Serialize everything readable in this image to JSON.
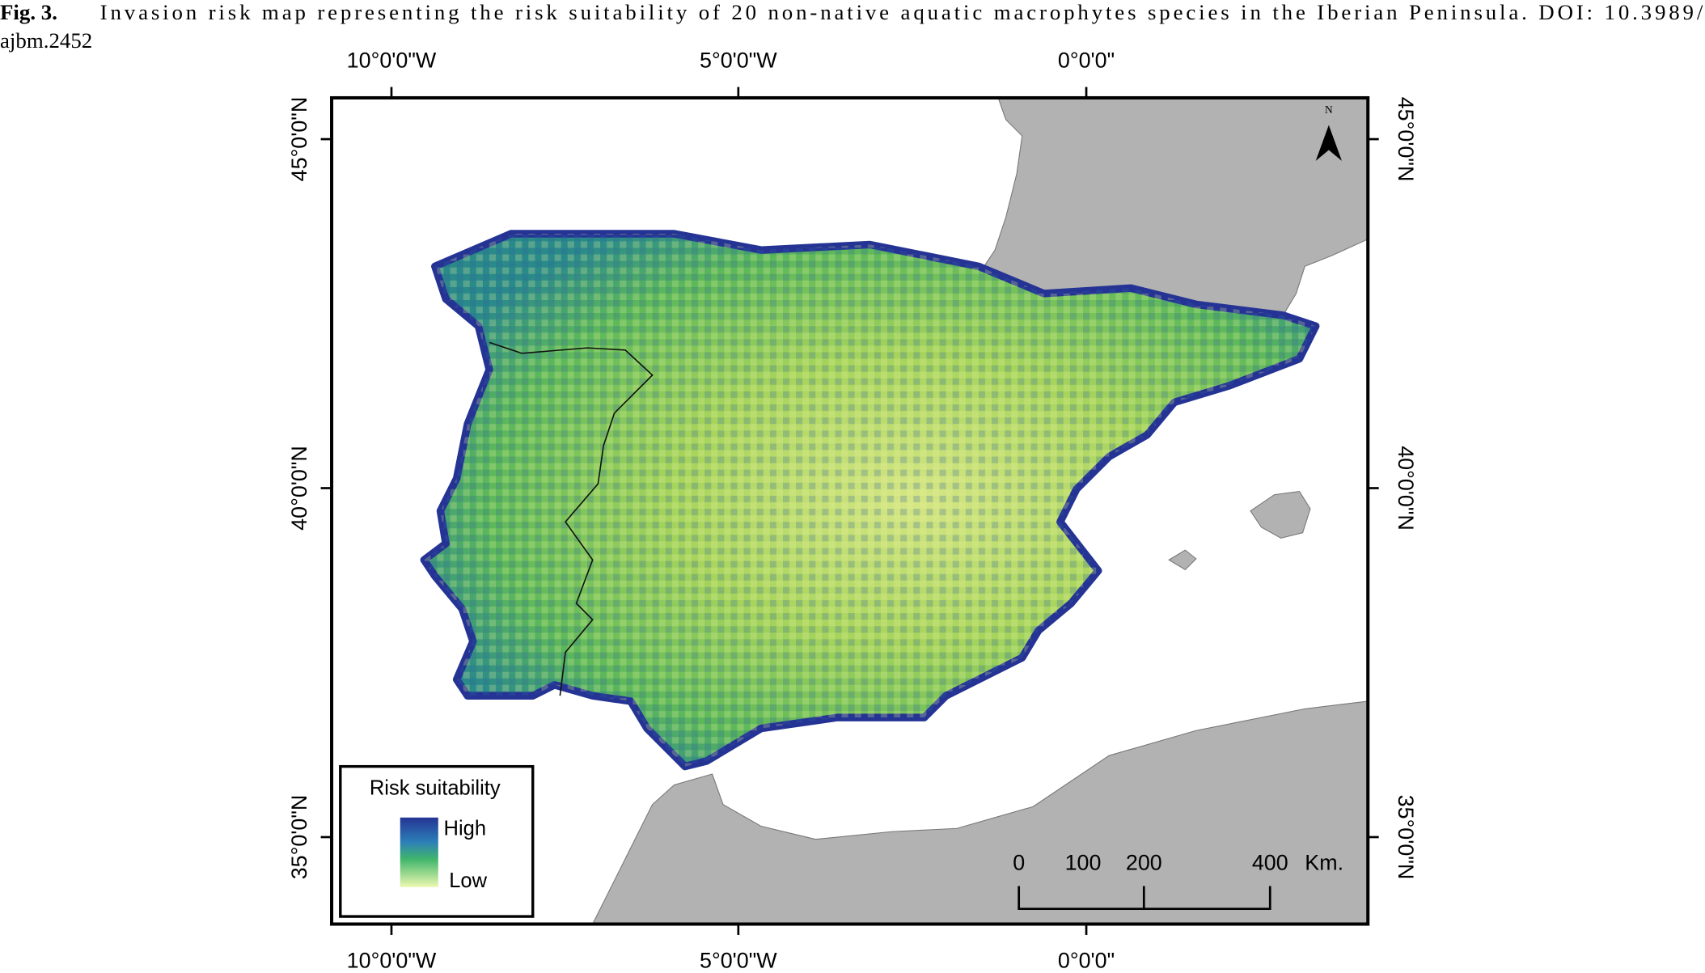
{
  "caption": {
    "label": "Fig. 3.",
    "lines": [
      "Invasion risk map representing the risk suitability of 20 non-native aquatic macrophytes species in the Iberian Peninsula. DOI: 10.3989/",
      "ajbm.2452"
    ]
  },
  "map": {
    "top_labels": [
      "10°0'0\"W",
      "5°0'0\"W",
      "0°0'0\""
    ],
    "bottom_labels": [
      "10°0'0\"W",
      "5°0'0\"W",
      "0°0'0\""
    ],
    "left_labels": [
      "45°0'0\"N",
      "40°0'0\"N",
      "35°0'0\"N"
    ],
    "right_labels": [
      "45°0'0\"N",
      "40°0'0\"N",
      "35°0'0\"N"
    ],
    "north": "N",
    "legend": {
      "title": "Risk suitability",
      "high": "High",
      "low": "Low"
    },
    "scale_bar": {
      "labels": [
        "0",
        "100",
        "200",
        "400"
      ],
      "unit": "Km."
    }
  }
}
